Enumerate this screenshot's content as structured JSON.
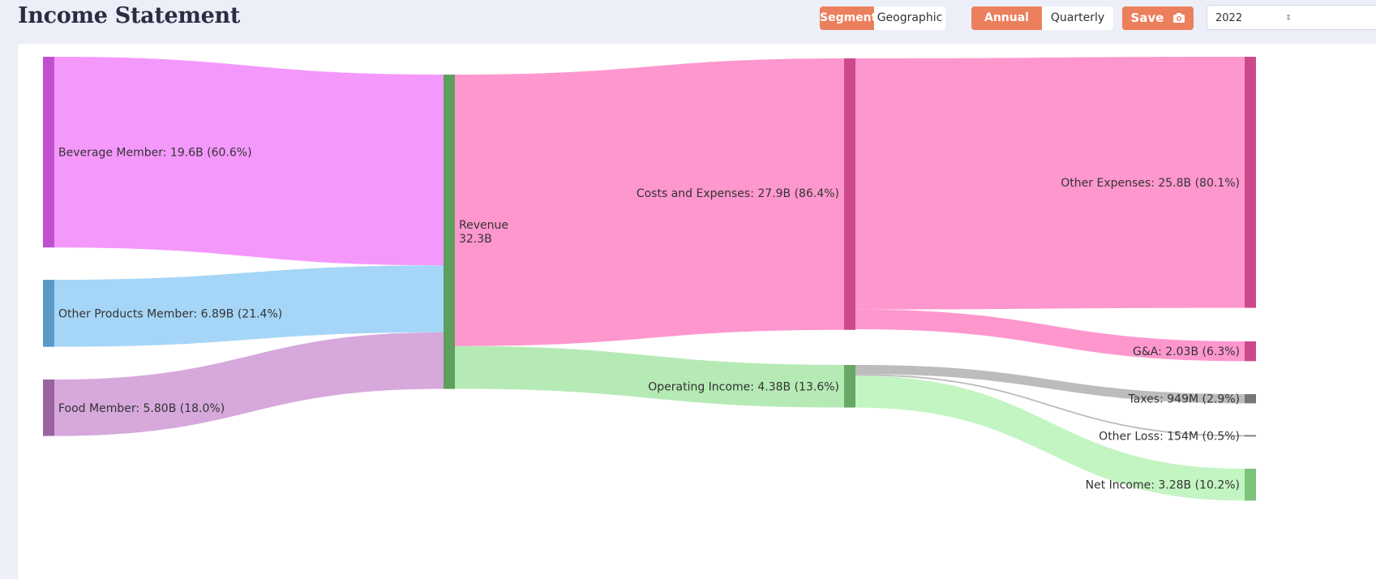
{
  "header": {
    "title": "Income Statement"
  },
  "controls": {
    "breakdown": {
      "options": [
        "Segment",
        "Geographic"
      ],
      "active": "Segment"
    },
    "period": {
      "options": [
        "Annual",
        "Quarterly"
      ],
      "active": "Annual"
    },
    "save_label": "Save",
    "save_icon": "camera-icon",
    "year": "2022"
  },
  "colors": {
    "accent": "#ec7f5c",
    "beverage": "#f598fc",
    "beverage_node": "#c150cf",
    "other_products": "#a6d6f7",
    "other_products_node": "#5b9ac6",
    "food": "#d6a8dc",
    "food_node": "#9a64a0",
    "revenue_node": "#5d9f5d",
    "costs": "#fe97cd",
    "costs_node": "#cc4a8c",
    "operating": "#b5eab5",
    "operating_node": "#67a867",
    "taxes": "#bcbcbc",
    "taxes_node": "#777777",
    "net": "#c3f5c3",
    "net_node": "#7cc47c"
  },
  "chart_data": {
    "type": "sankey",
    "unit": "USD",
    "nodes": [
      {
        "id": "beverage",
        "label": "Beverage Member: 19.6B (60.6%)",
        "value": 19.6,
        "percent": 60.6
      },
      {
        "id": "other_products",
        "label": "Other Products Member: 6.89B (21.4%)",
        "value": 6.89,
        "percent": 21.4
      },
      {
        "id": "food",
        "label": "Food Member: 5.80B (18.0%)",
        "value": 5.8,
        "percent": 18.0
      },
      {
        "id": "revenue",
        "label": "Revenue",
        "value_label": "32.3B",
        "value": 32.3
      },
      {
        "id": "costs",
        "label": "Costs and Expenses: 27.9B (86.4%)",
        "value": 27.9,
        "percent": 86.4
      },
      {
        "id": "operating",
        "label": "Operating Income: 4.38B (13.6%)",
        "value": 4.38,
        "percent": 13.6
      },
      {
        "id": "other_expenses",
        "label": "Other Expenses: 25.8B (80.1%)",
        "value": 25.8,
        "percent": 80.1
      },
      {
        "id": "ga",
        "label": "G&A: 2.03B (6.3%)",
        "value": 2.03,
        "percent": 6.3
      },
      {
        "id": "taxes",
        "label": "Taxes: 949M (2.9%)",
        "value": 0.949,
        "percent": 2.9
      },
      {
        "id": "other_loss",
        "label": "Other Loss: 154M (0.5%)",
        "value": 0.154,
        "percent": 0.5
      },
      {
        "id": "net",
        "label": "Net Income: 3.28B (10.2%)",
        "value": 3.28,
        "percent": 10.2
      }
    ],
    "links": [
      {
        "source": "beverage",
        "target": "revenue",
        "value": 19.6
      },
      {
        "source": "other_products",
        "target": "revenue",
        "value": 6.89
      },
      {
        "source": "food",
        "target": "revenue",
        "value": 5.8
      },
      {
        "source": "revenue",
        "target": "costs",
        "value": 27.9
      },
      {
        "source": "revenue",
        "target": "operating",
        "value": 4.38
      },
      {
        "source": "costs",
        "target": "other_expenses",
        "value": 25.8
      },
      {
        "source": "costs",
        "target": "ga",
        "value": 2.03
      },
      {
        "source": "operating",
        "target": "taxes",
        "value": 0.949
      },
      {
        "source": "operating",
        "target": "other_loss",
        "value": 0.154
      },
      {
        "source": "operating",
        "target": "net",
        "value": 3.28
      }
    ]
  }
}
